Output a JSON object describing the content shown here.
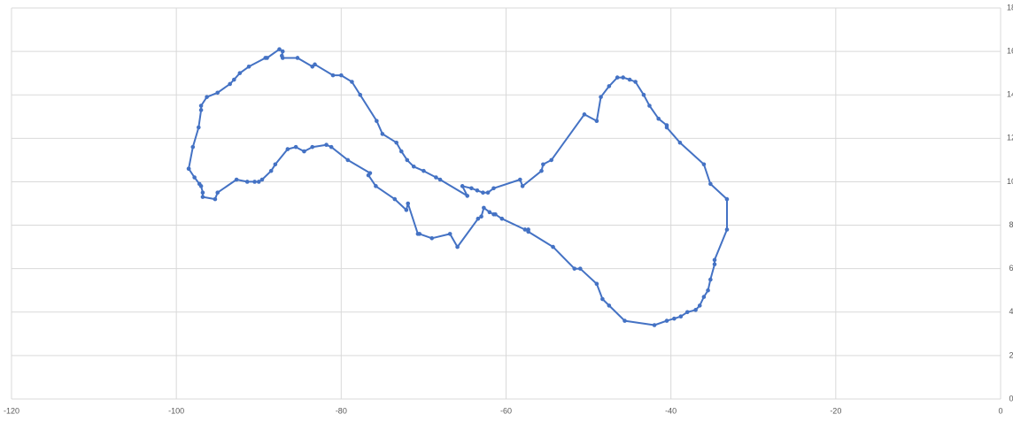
{
  "chart_data": {
    "type": "scatter",
    "color": "#4472c4",
    "grid": true,
    "line": true,
    "xlim": [
      -120,
      0
    ],
    "xticks": [
      -120,
      -100,
      -80,
      -60,
      -40,
      -20,
      0
    ],
    "ylim": [
      0,
      18
    ],
    "yticks": [
      0,
      2,
      4,
      6,
      8,
      10,
      12,
      14,
      16,
      18
    ],
    "y_axis_side": "right",
    "x": [
      -98.5,
      -98,
      -97.3,
      -97,
      -97,
      -96.3,
      -95,
      -93.5,
      -93,
      -92.3,
      -91.2,
      -89.2,
      -89,
      -87.5,
      -87.1,
      -87.2,
      -87.1,
      -85.3,
      -83.5,
      -83.2,
      -81,
      -80,
      -78.7,
      -77.7,
      -75.7,
      -75,
      -73.3,
      -72.7,
      -72,
      -71.2,
      -70,
      -68.5,
      -68,
      -64.7,
      -65.3,
      -64.2,
      -63.5,
      -62.8,
      -62.2,
      -61.5,
      -58.3,
      -58,
      -55.7,
      -55.5,
      -54.5,
      -50.5,
      -49,
      -48.5,
      -47.5,
      -46.5,
      -45.8,
      -45,
      -44.3,
      -43.3,
      -42.6,
      -41.5,
      -40.5,
      -40.5,
      -38.9,
      -36,
      -35.2,
      -33.2,
      -33.2,
      -34.7,
      -34.7,
      -35.2,
      -35.5,
      -36,
      -36.5,
      -37,
      -38,
      -38.8,
      -39.6,
      -40.5,
      -42,
      -45.6,
      -47.5,
      -48.3,
      -49,
      -51,
      -51.7,
      -54.3,
      -57.3,
      -57.3,
      -57.7,
      -60.5,
      -61.3,
      -61.5,
      -62,
      -62.7,
      -63,
      -63.4,
      -65.9,
      -66.8,
      -69,
      -70.5,
      -70.7,
      -71.9,
      -72.1,
      -73.5,
      -75.8,
      -76.7,
      -76.5,
      -79.2,
      -81.2,
      -81.8,
      -83.5,
      -84.5,
      -85.5,
      -86.5,
      -88,
      -88.5,
      -89.6,
      -90,
      -90.5,
      -91.4,
      -92.7,
      -95,
      -95.3,
      -96.8,
      -96.8,
      -97,
      -97.2,
      -97.8,
      -98.5
    ],
    "series": [
      {
        "values": [
          10.6,
          11.6,
          12.5,
          13.3,
          13.5,
          13.9,
          14.1,
          14.5,
          14.7,
          15,
          15.3,
          15.7,
          15.7,
          16.1,
          16,
          15.8,
          15.7,
          15.7,
          15.3,
          15.4,
          14.9,
          14.9,
          14.6,
          14,
          12.8,
          12.2,
          11.8,
          11.4,
          11,
          10.7,
          10.5,
          10.2,
          10.1,
          9.35,
          9.8,
          9.7,
          9.6,
          9.5,
          9.5,
          9.7,
          10.1,
          9.8,
          10.5,
          10.8,
          11,
          13.1,
          12.8,
          13.9,
          14.4,
          14.8,
          14.8,
          14.7,
          14.6,
          14,
          13.5,
          12.9,
          12.6,
          12.5,
          11.8,
          10.8,
          9.9,
          9.2,
          7.8,
          6.4,
          6.2,
          5.5,
          5,
          4.7,
          4.3,
          4.1,
          4,
          3.8,
          3.7,
          3.6,
          3.4,
          3.6,
          4.3,
          4.6,
          5.3,
          6,
          6,
          7,
          7.7,
          7.8,
          7.8,
          8.3,
          8.5,
          8.5,
          8.6,
          8.8,
          8.4,
          8.3,
          7,
          7.6,
          7.4,
          7.6,
          7.6,
          9,
          8.7,
          9.2,
          9.8,
          10.3,
          10.4,
          11,
          11.6,
          11.7,
          11.6,
          11.4,
          11.6,
          11.5,
          10.8,
          10.5,
          10.1,
          10,
          10,
          10,
          10.1,
          9.5,
          9.2,
          9.3,
          9.5,
          9.8,
          9.9,
          10.2,
          10.6
        ]
      }
    ]
  }
}
